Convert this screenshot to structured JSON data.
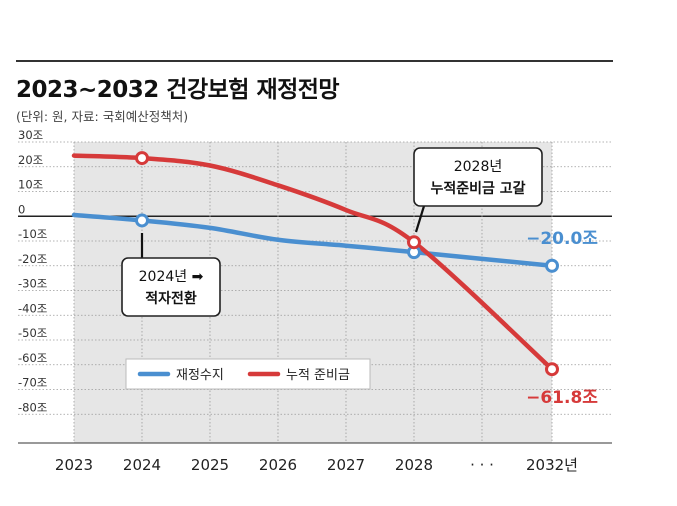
{
  "title": "2023~2032 건강보험 재정전망",
  "subtitle": "(단위: 원, 자료: 국회예산정책처)",
  "colors": {
    "balance": "#4a8fd0",
    "reserve": "#d63a3a",
    "shade": "#e6e6e6",
    "zero_line": "#222222"
  },
  "chart_data": {
    "type": "line",
    "x": [
      "2023",
      "2024",
      "2025",
      "2026",
      "2027",
      "2028",
      "· · ·",
      "2032년"
    ],
    "ylim": [
      -90,
      30
    ],
    "yticks": [
      30,
      20,
      10,
      0,
      -10,
      -20,
      -30,
      -40,
      -50,
      -60,
      -70,
      -80
    ],
    "ytick_labels": [
      "30조",
      "20조",
      "10조",
      "0",
      "-10조",
      "-20조",
      "-30조",
      "-40조",
      "-50조",
      "-60조",
      "-70조",
      "-80조"
    ],
    "grid": true,
    "legend": "bottom-left",
    "series": [
      {
        "name": "재정수지",
        "color": "#4a8fd0",
        "values": [
          0.5,
          -1.7,
          -4.7,
          -9.5,
          -11.9,
          -14.5,
          null,
          -20.0
        ],
        "markers": [
          1,
          5,
          7
        ]
      },
      {
        "name": "누적 준비금",
        "color": "#d63a3a",
        "values": [
          24.5,
          23.5,
          20.5,
          12.5,
          2.5,
          -10.5,
          null,
          -61.8
        ],
        "markers": [
          1,
          5,
          7
        ]
      }
    ],
    "value_labels": [
      {
        "series": 0,
        "index": 7,
        "text": "−20.0조"
      },
      {
        "series": 1,
        "index": 7,
        "text": "−61.8조"
      }
    ],
    "annotations": [
      {
        "index": 1,
        "value": -1.7,
        "lines": [
          "2024년 ➡",
          "적자전환"
        ]
      },
      {
        "index": 5,
        "value": -10.5,
        "lines": [
          "2028년",
          "누적준비금 고갈"
        ]
      }
    ]
  }
}
